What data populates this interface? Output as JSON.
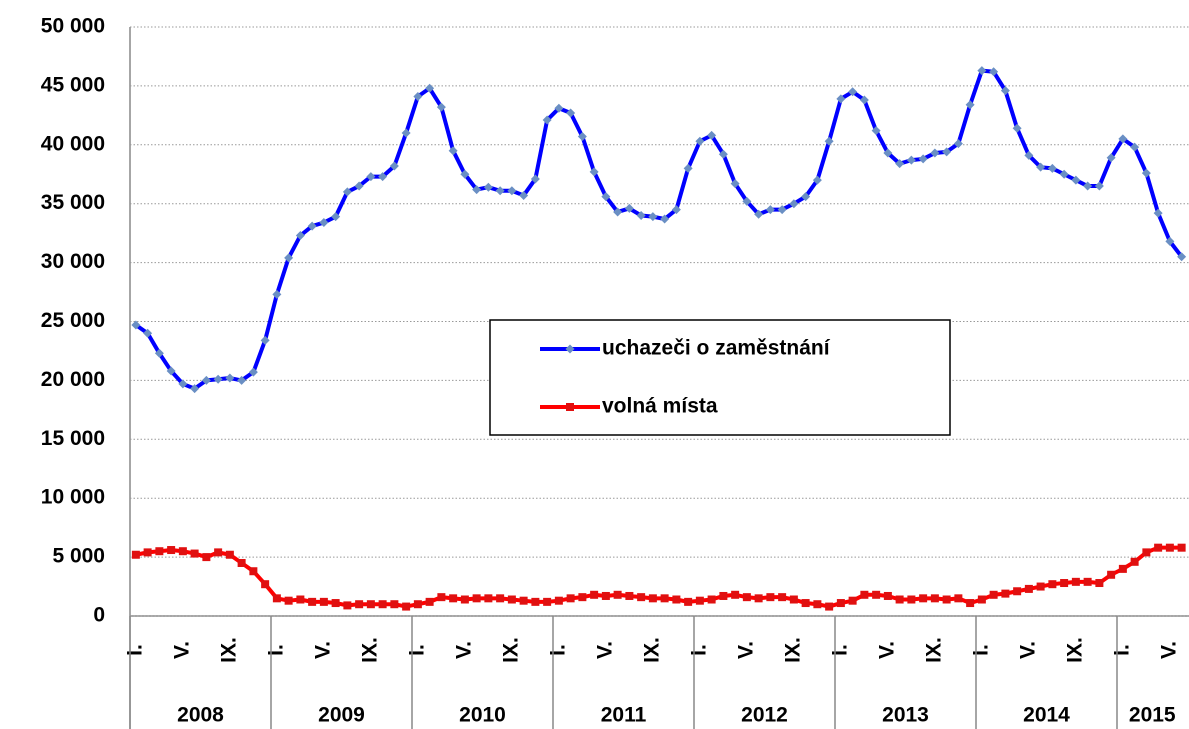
{
  "chart_data": {
    "type": "line",
    "categories": [
      "I.",
      null,
      null,
      null,
      "V.",
      null,
      null,
      null,
      "IX.",
      null,
      null,
      null,
      "I.",
      null,
      null,
      null,
      "V.",
      null,
      null,
      null,
      "IX.",
      null,
      null,
      null,
      "I.",
      null,
      null,
      null,
      "V.",
      null,
      null,
      null,
      "IX.",
      null,
      null,
      null,
      "I.",
      null,
      null,
      null,
      "V.",
      null,
      null,
      null,
      "IX.",
      null,
      null,
      null,
      "I.",
      null,
      null,
      null,
      "V.",
      null,
      null,
      null,
      "IX.",
      null,
      null,
      null,
      "I.",
      null,
      null,
      null,
      "V.",
      null,
      null,
      null,
      "IX.",
      null,
      null,
      null,
      "I.",
      null,
      null,
      null,
      "V.",
      null,
      null,
      null,
      "IX.",
      null,
      null,
      null,
      "I.",
      null,
      null,
      null,
      "V.",
      null
    ],
    "years": [
      "2008",
      "2009",
      "2010",
      "2011",
      "2012",
      "2013",
      "2014",
      "2015"
    ],
    "series": [
      {
        "name": "uchazeči o zaměstnání",
        "color": "#0000ff",
        "marker_color": "#6a8fc4",
        "marker": "diamond",
        "values": [
          24700,
          24000,
          22300,
          20800,
          19700,
          19300,
          20000,
          20100,
          20200,
          20000,
          20700,
          23400,
          27300,
          30400,
          32300,
          33100,
          33400,
          33900,
          36000,
          36500,
          37300,
          37300,
          38200,
          41000,
          44100,
          44800,
          43200,
          39500,
          37500,
          36200,
          36400,
          36100,
          36100,
          35700,
          37100,
          42100,
          43100,
          42700,
          40700,
          37700,
          35600,
          34300,
          34600,
          34000,
          33900,
          33700,
          34500,
          38000,
          40300,
          40800,
          39200,
          36700,
          35200,
          34100,
          34500,
          34500,
          35000,
          35600,
          37000,
          40300,
          43900,
          44500,
          43800,
          41200,
          39300,
          38400,
          38700,
          38800,
          39300,
          39400,
          40100,
          43400,
          46300,
          46200,
          44600,
          41400,
          39100,
          38100,
          38000,
          37500,
          37000,
          36500,
          36500,
          38900,
          40500,
          39800,
          37600,
          34200,
          31800,
          30500
        ]
      },
      {
        "name": "volná místa",
        "color": "#ff0000",
        "marker_color": "#e01010",
        "marker": "square",
        "values": [
          5200,
          5400,
          5500,
          5600,
          5500,
          5300,
          5000,
          5400,
          5200,
          4500,
          3800,
          2700,
          1500,
          1300,
          1400,
          1200,
          1200,
          1100,
          900,
          1000,
          1000,
          1000,
          1000,
          800,
          1000,
          1200,
          1600,
          1500,
          1400,
          1500,
          1500,
          1500,
          1400,
          1300,
          1200,
          1200,
          1300,
          1500,
          1600,
          1800,
          1700,
          1800,
          1700,
          1600,
          1500,
          1500,
          1400,
          1200,
          1300,
          1400,
          1700,
          1800,
          1600,
          1500,
          1600,
          1600,
          1400,
          1100,
          1000,
          800,
          1100,
          1300,
          1800,
          1800,
          1700,
          1400,
          1400,
          1500,
          1500,
          1400,
          1500,
          1100,
          1400,
          1800,
          1900,
          2100,
          2300,
          2500,
          2700,
          2800,
          2900,
          2900,
          2800,
          3500,
          4000,
          4600,
          5400,
          5800,
          5800,
          5800
        ]
      }
    ],
    "ylim": [
      0,
      50000
    ],
    "yticks": [
      0,
      {
        "value": 5000,
        "label": "5 000"
      },
      {
        "value": 10000,
        "label": "10 000"
      },
      {
        "value": 15000,
        "label": "15 000"
      },
      {
        "value": 20000,
        "label": "20 000"
      },
      {
        "value": 25000,
        "label": "25 000"
      },
      {
        "value": 30000,
        "label": "30 000"
      },
      {
        "value": 35000,
        "label": "35 000"
      },
      {
        "value": 40000,
        "label": "40 000"
      },
      {
        "value": 45000,
        "label": "45 000"
      },
      {
        "value": 50000,
        "label": "50 000"
      }
    ],
    "grid": true
  }
}
